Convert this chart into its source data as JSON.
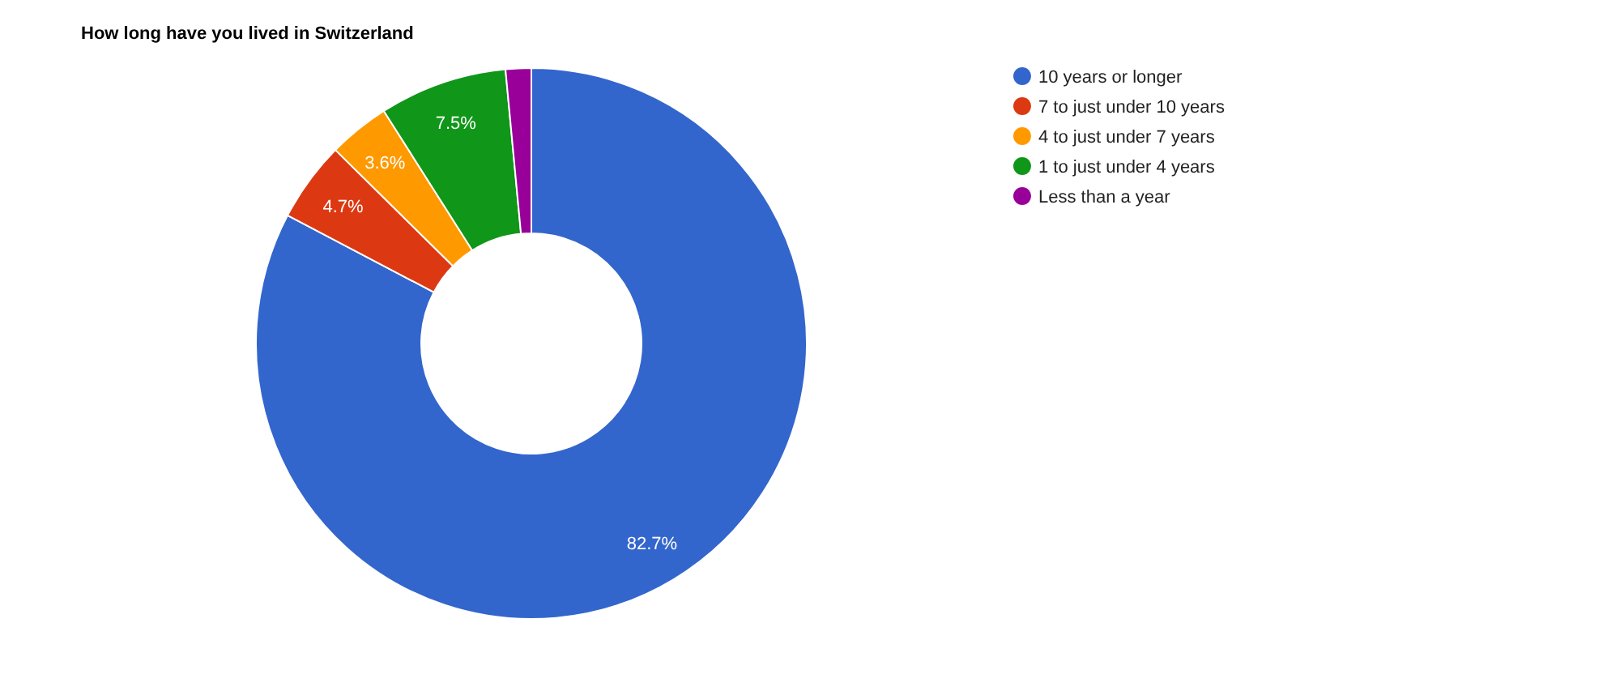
{
  "chart_data": {
    "type": "donut",
    "title": "How long have you lived in Switzerland",
    "categories": [
      "10 years or longer",
      "7 to just under 10 years",
      "4 to just under 7 years",
      "1 to just under 4 years",
      "Less than a year"
    ],
    "values": [
      82.7,
      4.7,
      3.6,
      7.5,
      1.5
    ],
    "colors": [
      "#3366cc",
      "#dc3912",
      "#ff9900",
      "#109618",
      "#990099"
    ],
    "value_labels": [
      "82.7%",
      "4.7%",
      "3.6%",
      "7.5%",
      null
    ],
    "legend": "right"
  }
}
